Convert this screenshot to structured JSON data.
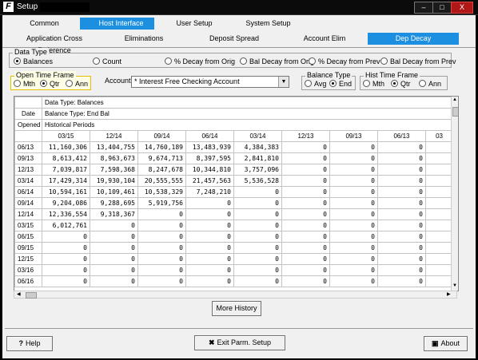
{
  "window": {
    "title": "Setup",
    "buttons": [
      "–",
      "□",
      "X"
    ]
  },
  "tabs_top": [
    {
      "label": "Common",
      "active": false
    },
    {
      "label": "Host Interface",
      "active": true
    },
    {
      "label": "User Setup",
      "active": false
    },
    {
      "label": "System Setup",
      "active": false
    }
  ],
  "tabs_sub": [
    {
      "label": "Application Cross Reference",
      "active": false
    },
    {
      "label": "Eliminations",
      "active": false
    },
    {
      "label": "Deposit Spread",
      "active": false
    },
    {
      "label": "Account Elim",
      "active": false
    },
    {
      "label": "Dep Decay",
      "active": true
    }
  ],
  "data_type": {
    "label": "Data Type",
    "options": [
      "Balances",
      "Count",
      "% Decay from Orig",
      "Bal Decay from Orig",
      "% Decay from Prev",
      "Bal Decay from Prev"
    ],
    "selected": 0
  },
  "open_time_frame": {
    "label": "Open Time Frame",
    "options": [
      "Mth",
      "Qtr",
      "Ann"
    ],
    "selected": 1
  },
  "account": {
    "label": "Account",
    "value": "* Interest Free Checking Account"
  },
  "balance_type": {
    "label": "Balance Type",
    "options": [
      "Avg",
      "End"
    ],
    "selected": 1
  },
  "hist_time_frame": {
    "label": "Hist Time Frame",
    "options": [
      "Mth",
      "Qtr",
      "Ann"
    ],
    "selected": 1
  },
  "grid": {
    "info_lines": [
      "Data Type: Balances",
      "Balance Type: End Bal",
      "Historical Periods"
    ],
    "left_headers": [
      "",
      "Date",
      "Opened"
    ],
    "columns": [
      "03/15",
      "12/14",
      "09/14",
      "06/14",
      "03/14",
      "12/13",
      "09/13",
      "06/13",
      "03"
    ],
    "rows": [
      {
        "date": "06/13",
        "values": [
          "11,160,306",
          "13,404,755",
          "14,760,189",
          "13,483,939",
          "4,384,383",
          "0",
          "0",
          "0",
          ""
        ]
      },
      {
        "date": "09/13",
        "values": [
          "8,613,412",
          "8,963,673",
          "9,674,713",
          "8,397,595",
          "2,841,810",
          "0",
          "0",
          "0",
          ""
        ]
      },
      {
        "date": "12/13",
        "values": [
          "7,039,817",
          "7,598,368",
          "8,247,678",
          "10,344,810",
          "3,757,096",
          "0",
          "0",
          "0",
          ""
        ]
      },
      {
        "date": "03/14",
        "values": [
          "17,429,314",
          "19,930,104",
          "20,555,555",
          "21,457,563",
          "5,536,528",
          "0",
          "0",
          "0",
          ""
        ]
      },
      {
        "date": "06/14",
        "values": [
          "10,594,161",
          "10,109,461",
          "10,538,329",
          "7,248,210",
          "0",
          "0",
          "0",
          "0",
          ""
        ]
      },
      {
        "date": "09/14",
        "values": [
          "9,204,086",
          "9,288,695",
          "5,919,756",
          "0",
          "0",
          "0",
          "0",
          "0",
          ""
        ]
      },
      {
        "date": "12/14",
        "values": [
          "12,336,554",
          "9,318,367",
          "0",
          "0",
          "0",
          "0",
          "0",
          "0",
          ""
        ]
      },
      {
        "date": "03/15",
        "values": [
          "6,012,761",
          "0",
          "0",
          "0",
          "0",
          "0",
          "0",
          "0",
          ""
        ]
      },
      {
        "date": "06/15",
        "values": [
          "0",
          "0",
          "0",
          "0",
          "0",
          "0",
          "0",
          "0",
          ""
        ]
      },
      {
        "date": "09/15",
        "values": [
          "0",
          "0",
          "0",
          "0",
          "0",
          "0",
          "0",
          "0",
          ""
        ]
      },
      {
        "date": "12/15",
        "values": [
          "0",
          "0",
          "0",
          "0",
          "0",
          "0",
          "0",
          "0",
          ""
        ]
      },
      {
        "date": "03/16",
        "values": [
          "0",
          "0",
          "0",
          "0",
          "0",
          "0",
          "0",
          "0",
          ""
        ]
      },
      {
        "date": "06/16",
        "values": [
          "0",
          "0",
          "0",
          "0",
          "0",
          "0",
          "0",
          "0",
          ""
        ]
      }
    ]
  },
  "more_history_label": "More History",
  "footer": {
    "help_label": "Help",
    "exit_label": "Exit Parm. Setup",
    "about_label": "About"
  },
  "colors": {
    "active_tab": "#1d8fe0",
    "highlight_group": "#ffffe8"
  }
}
